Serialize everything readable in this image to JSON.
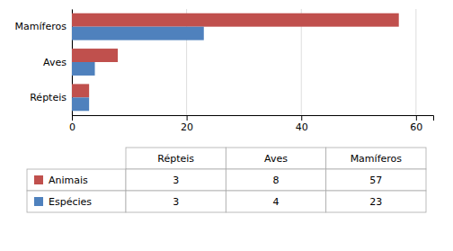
{
  "chart_data": {
    "type": "bar",
    "orientation": "horizontal",
    "categories": [
      "Répteis",
      "Aves",
      "Mamíferos"
    ],
    "series": [
      {
        "name": "Animais",
        "color": "#C0504D",
        "values": [
          3,
          8,
          57
        ]
      },
      {
        "name": "Espécies",
        "color": "#4F81BD",
        "values": [
          3,
          4,
          23
        ]
      }
    ],
    "xlim": [
      0,
      63
    ],
    "xticks": [
      0,
      20,
      40,
      60
    ],
    "grid": true
  }
}
